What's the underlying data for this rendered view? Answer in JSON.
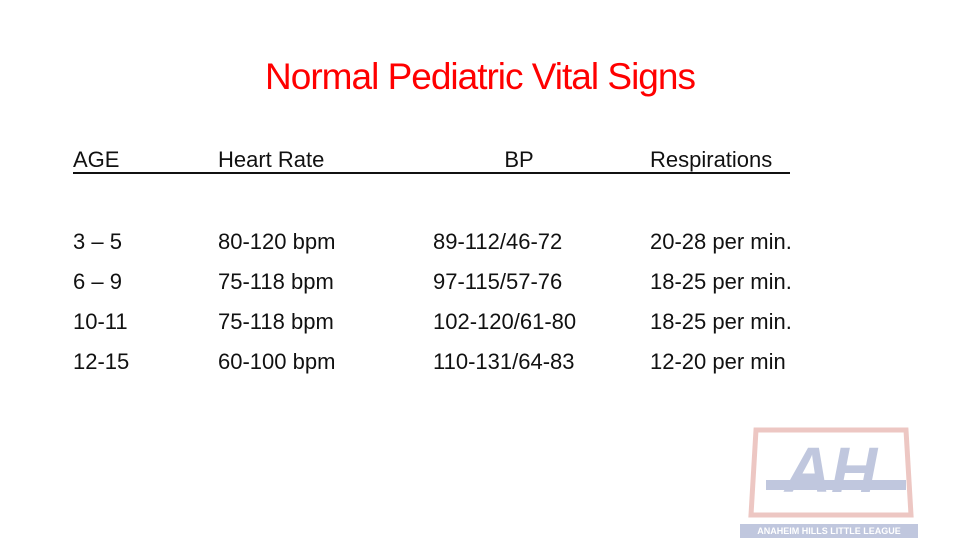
{
  "title": "Normal Pediatric Vital Signs",
  "table": {
    "headers": [
      "AGE",
      "Heart Rate",
      "BP",
      "Respirations"
    ],
    "rows": [
      [
        "3 – 5",
        "80-120 bpm",
        "89-112/46-72",
        "20-28 per min."
      ],
      [
        "6 – 9",
        "75-118 bpm",
        "97-115/57-76",
        "18-25 per min."
      ],
      [
        "10-11",
        "75-118 bpm",
        "102-120/61-80",
        "18-25 per min."
      ],
      [
        "12-15",
        "60-100 bpm",
        "110-131/64-83",
        "12-20 per min"
      ]
    ]
  },
  "logo": {
    "letters": "AH",
    "banner": "ANAHEIM HILLS LITTLE LEAGUE"
  }
}
